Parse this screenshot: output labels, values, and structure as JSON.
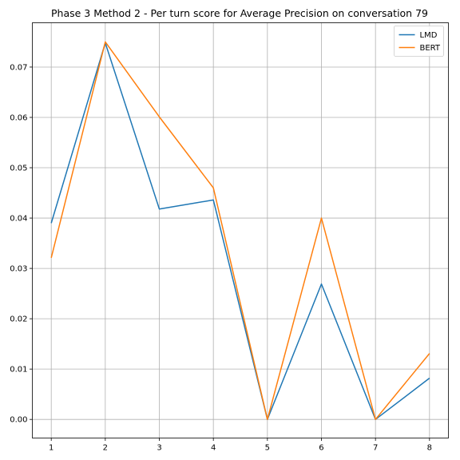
{
  "chart_data": {
    "type": "line",
    "title": "Phase 3 Method 2 - Per turn score for Average Precision on conversation 79",
    "xlabel": "",
    "ylabel": "",
    "x": [
      1,
      2,
      3,
      4,
      5,
      6,
      7,
      8
    ],
    "x_ticks": [
      "1",
      "2",
      "3",
      "4",
      "5",
      "6",
      "7",
      "8"
    ],
    "y_ticks": [
      "0.00",
      "0.01",
      "0.02",
      "0.03",
      "0.04",
      "0.05",
      "0.06",
      "0.07"
    ],
    "xlim": [
      0.65,
      8.35
    ],
    "ylim": [
      -0.0037,
      0.0788
    ],
    "grid": true,
    "legend_position": "top-right",
    "series": [
      {
        "name": "LMD",
        "color": "#1f77b4",
        "values": [
          0.039,
          0.0748,
          0.0418,
          0.0436,
          0.0,
          0.0269,
          0.0,
          0.0082
        ]
      },
      {
        "name": "BERT",
        "color": "#ff7f0e",
        "values": [
          0.0321,
          0.075,
          0.0601,
          0.046,
          0.0,
          0.04,
          0.0,
          0.0131
        ]
      }
    ]
  }
}
